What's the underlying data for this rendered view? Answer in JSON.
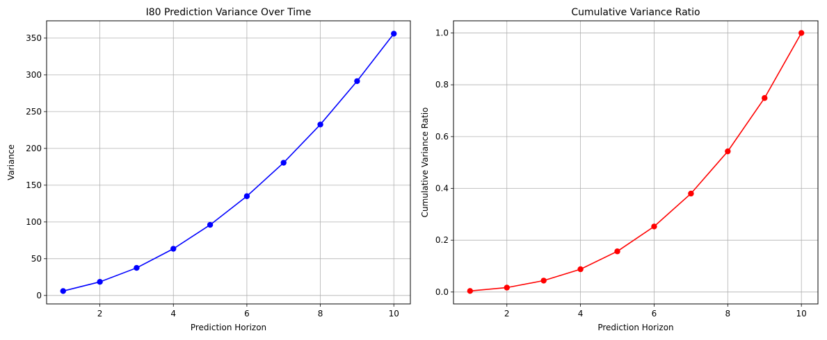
{
  "chart_data": [
    {
      "type": "line",
      "title": "I80 Prediction Variance Over Time",
      "xlabel": "Prediction Horizon",
      "ylabel": "Variance",
      "x": [
        1,
        2,
        3,
        4,
        5,
        6,
        7,
        8,
        9,
        10
      ],
      "series": [
        {
          "values": [
            6,
            18.5,
            37.5,
            63.5,
            96,
            135,
            180.5,
            232.5,
            291.5,
            356
          ],
          "color": "#0000ff",
          "marker": "circle"
        }
      ],
      "xlim": [
        0.55,
        10.45
      ],
      "ylim": [
        -11.5,
        373.5
      ],
      "xticks": [
        2,
        4,
        6,
        8,
        10
      ],
      "xtick_labels": [
        "2",
        "4",
        "6",
        "8",
        "10"
      ],
      "yticks": [
        0,
        50,
        100,
        150,
        200,
        250,
        300,
        350
      ],
      "ytick_labels": [
        "0",
        "50",
        "100",
        "150",
        "200",
        "250",
        "300",
        "350"
      ],
      "grid": true,
      "legend": "none"
    },
    {
      "type": "line",
      "title": "Cumulative Variance Ratio",
      "xlabel": "Prediction Horizon",
      "ylabel": "Cumulative Variance Ratio",
      "x": [
        1,
        2,
        3,
        4,
        5,
        6,
        7,
        8,
        9,
        10
      ],
      "series": [
        {
          "values": [
            0.004,
            0.017,
            0.044,
            0.088,
            0.157,
            0.253,
            0.38,
            0.543,
            0.749,
            1.0
          ],
          "color": "#ff0000",
          "marker": "circle"
        }
      ],
      "xlim": [
        0.55,
        10.45
      ],
      "ylim": [
        -0.046,
        1.047
      ],
      "xticks": [
        2,
        4,
        6,
        8,
        10
      ],
      "xtick_labels": [
        "2",
        "4",
        "6",
        "8",
        "10"
      ],
      "yticks": [
        0.0,
        0.2,
        0.4,
        0.6,
        0.8,
        1.0
      ],
      "ytick_labels": [
        "0.0",
        "0.2",
        "0.4",
        "0.6",
        "0.8",
        "1.0"
      ],
      "grid": true,
      "legend": "none"
    }
  ]
}
